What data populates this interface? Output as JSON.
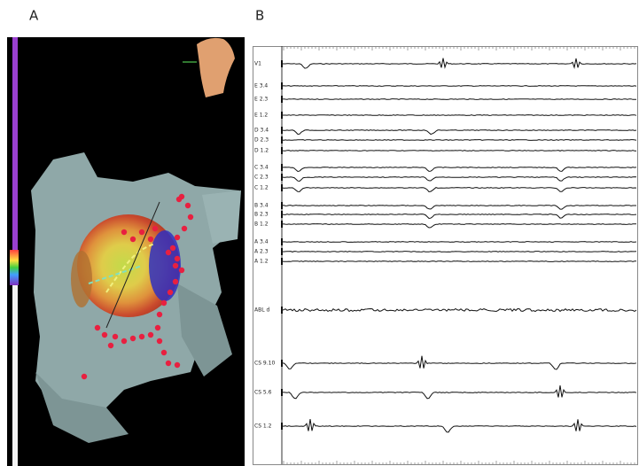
{
  "panels": {
    "a": {
      "label": "A"
    },
    "b": {
      "label": "B",
      "channels": [
        "V1",
        "E 3.4",
        "E 2.3",
        "E 1.2",
        "D 3.4",
        "D 2.3",
        "D 1.2",
        "C 3.4",
        "C 2.3",
        "C 1.2",
        "B 3.4",
        "B 2.3",
        "B 1.2",
        "A 3.4",
        "A 2.3",
        "A 1.2",
        "ABL d",
        "CS 9.10",
        "CS 5.6",
        "CS 1.2"
      ]
    }
  }
}
